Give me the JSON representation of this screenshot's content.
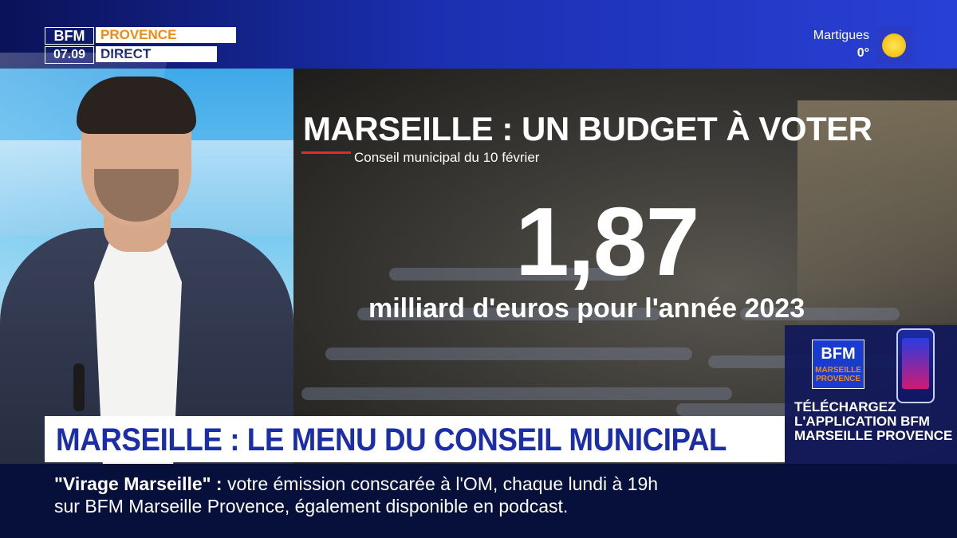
{
  "header": {
    "brand": "BFM",
    "time": "07.09",
    "region": "PROVENCE",
    "live_label": "DIRECT",
    "weather": {
      "city": "Martigues",
      "temperature": "0°",
      "icon": "sun-icon"
    }
  },
  "graphic": {
    "title": "MARSEILLE : UN BUDGET À VOTER",
    "subtitle": "Conseil municipal du 10 février",
    "big_number": "1,87",
    "big_caption": "milliard d'euros pour l'année 2023",
    "accent_color": "#e32a2a"
  },
  "promo": {
    "brand": "BFM",
    "brand_sub": "MARSEILLE PROVENCE",
    "cta": "TÉLÉCHARGEZ L'APPLICATION BFM MARSEILLE PROVENCE",
    "icon": "phone-app-icon"
  },
  "headline": {
    "text": "MARSEILLE : LE MENU DU CONSEIL MUNICIPAL",
    "color": "#1b2ea8"
  },
  "ticker": {
    "show": "\"Virage Marseille\" :",
    "line1_rest": " votre émission conscarée à l'OM, chaque lundi à 19h",
    "line2": "sur BFM Marseille Provence, également disponible en podcast."
  },
  "colors": {
    "brand_blue": "#1b2ea8",
    "brand_orange": "#f08a12",
    "ticker_bg": "#06103a"
  }
}
